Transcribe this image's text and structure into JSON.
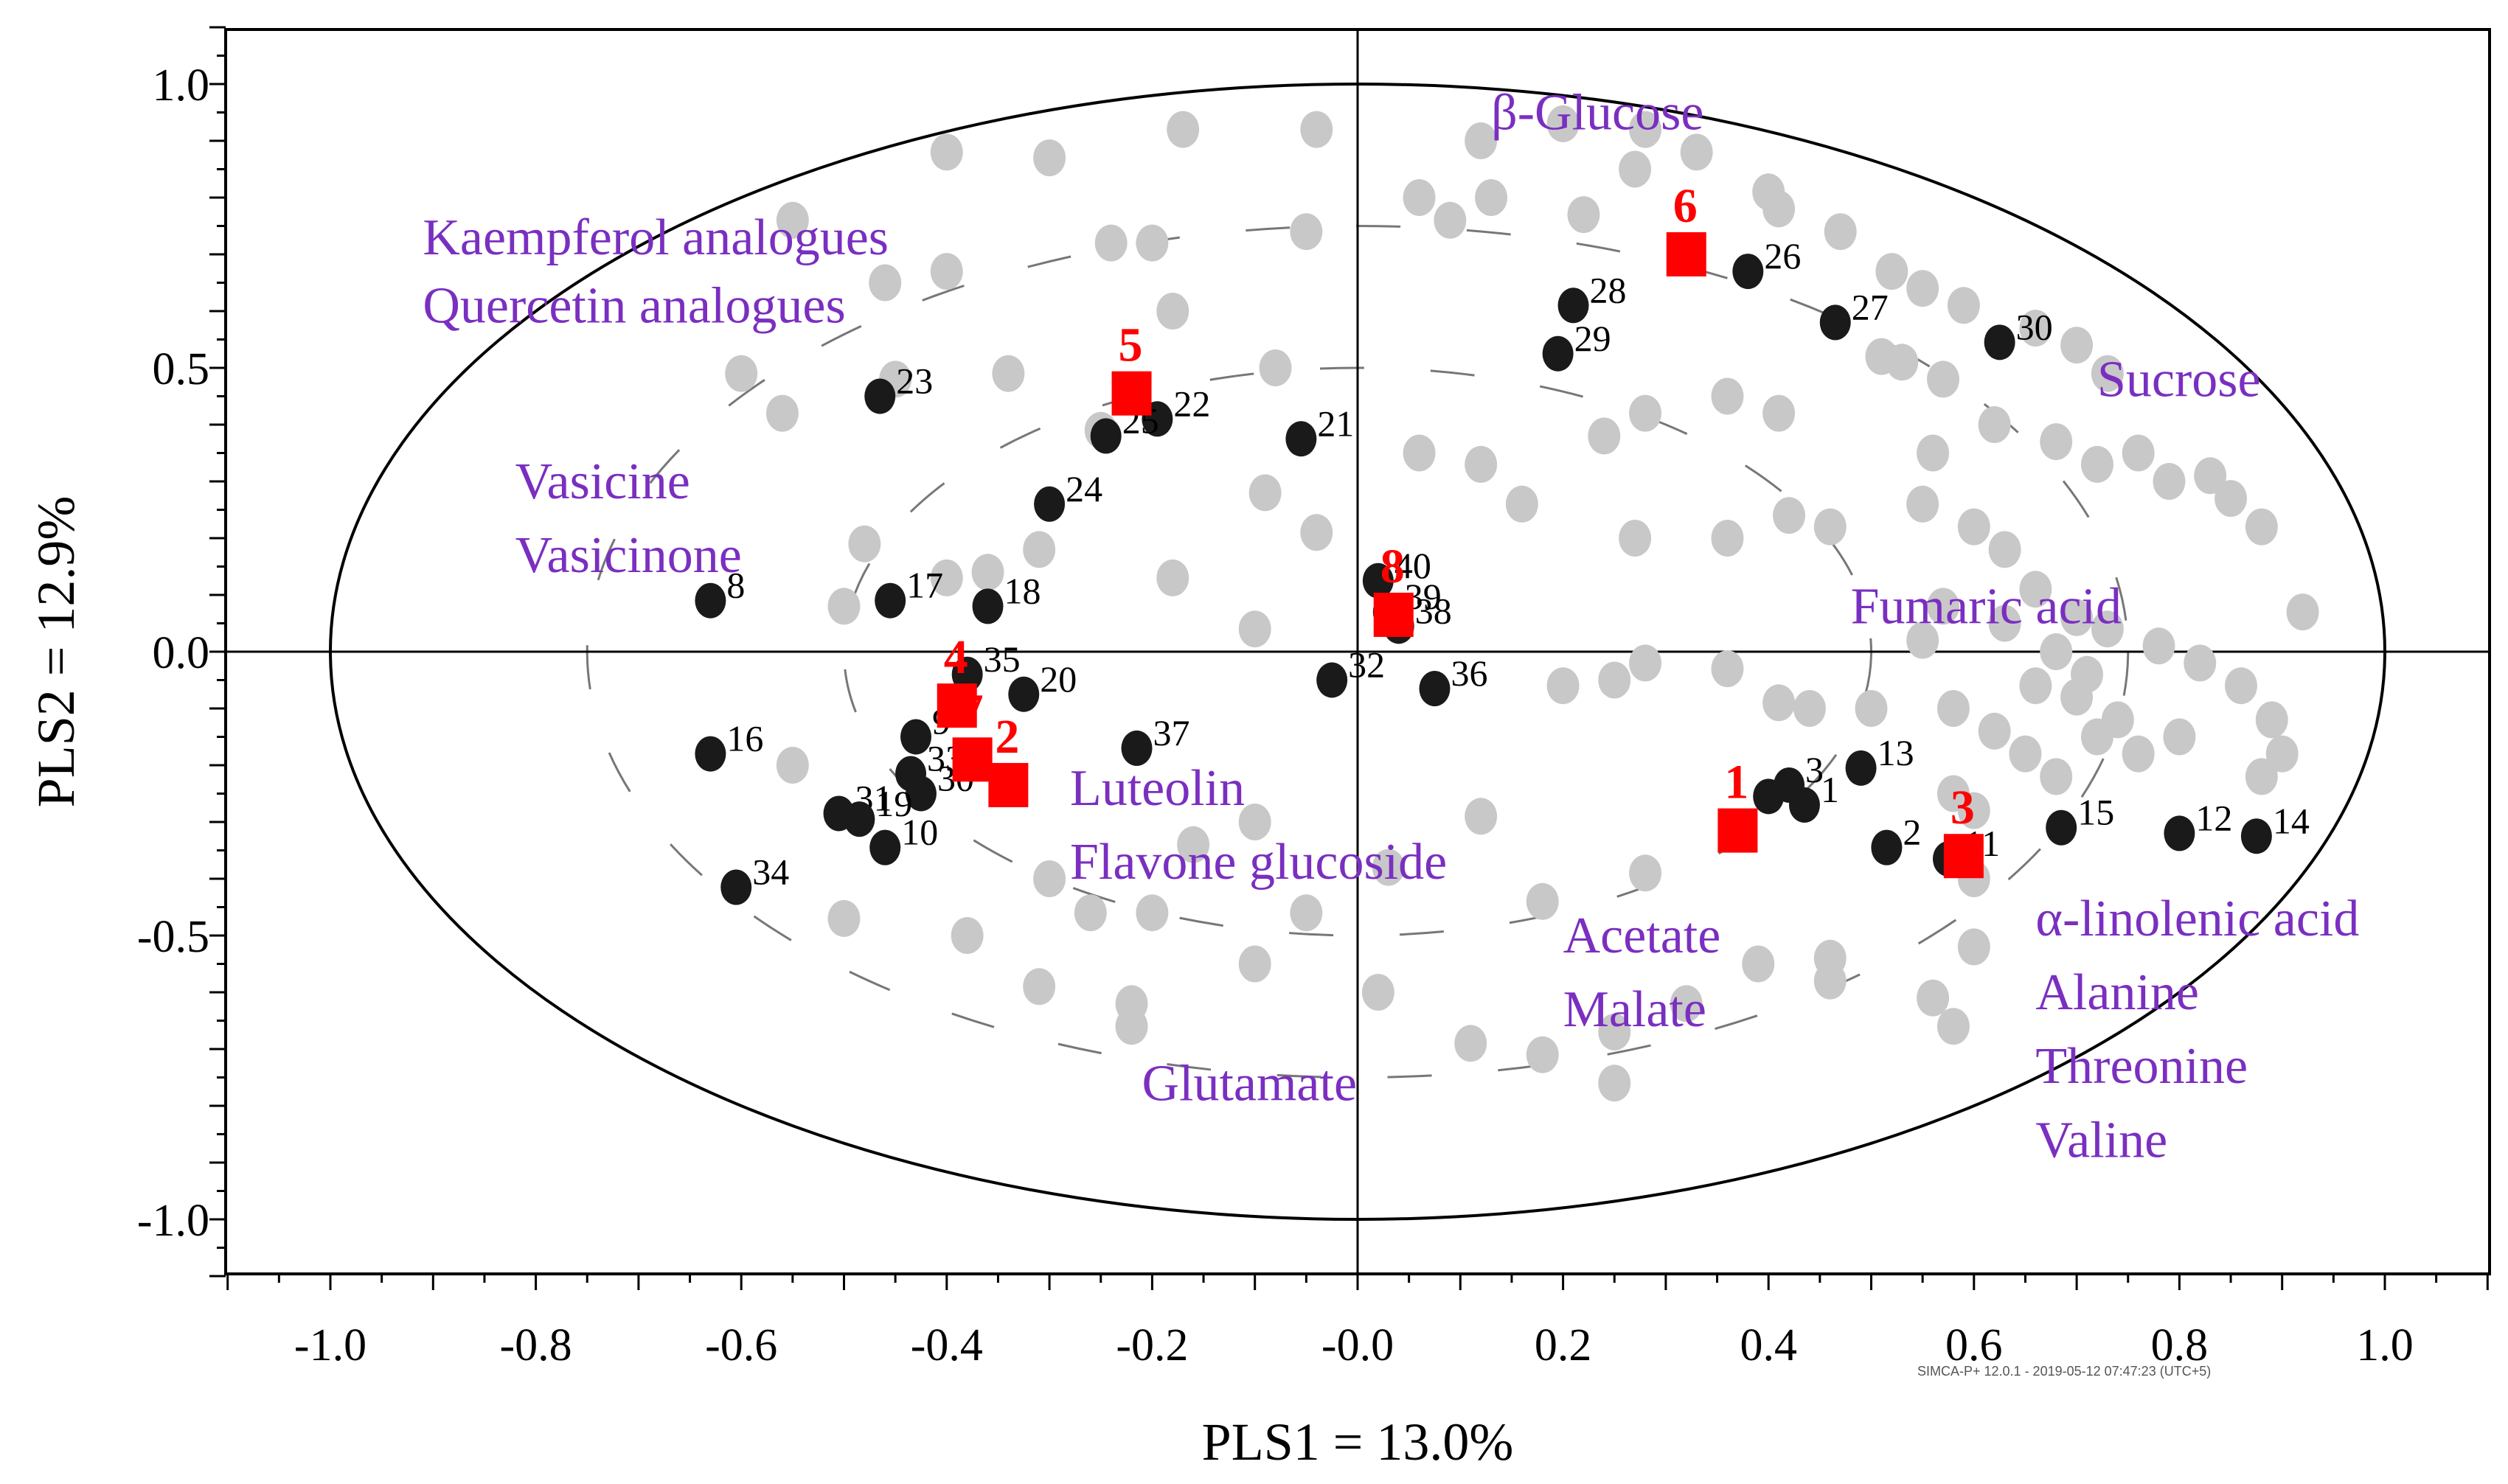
{
  "chart_data": {
    "type": "scatter",
    "xlabel": "PLS1 = 13.0%",
    "ylabel": "PLS2 = 12.9%",
    "xlim": [
      -1.1,
      1.1
    ],
    "ylim": [
      -1.1,
      1.1
    ],
    "xticks": [
      "-1.0",
      "-0.8",
      "-0.6",
      "-0.4",
      "-0.2",
      "-0.0",
      "0.2",
      "0.4",
      "0.6",
      "0.8",
      "1.0"
    ],
    "yticks": [
      "1.0",
      "0.5",
      "0.0",
      "-0.5",
      "-1.0"
    ],
    "ellipse_radii": [
      1.0,
      0.75,
      0.5
    ],
    "variables_color": "#c8c8c8",
    "observations_color": "#1a1a1a",
    "samples_color": "#ff0000",
    "label_color": "#7a2fc0",
    "metabolite_labels": [
      {
        "text": "β-Glucose",
        "x": 0.13,
        "y": 0.92
      },
      {
        "text": "Kaempferol analogues",
        "x": -0.91,
        "y": 0.7
      },
      {
        "text": "Quercetin analogues",
        "x": -0.91,
        "y": 0.58
      },
      {
        "text": "Sucrose",
        "x": 0.72,
        "y": 0.45
      },
      {
        "text": "Vasicine",
        "x": -0.82,
        "y": 0.27
      },
      {
        "text": "Vasicinone",
        "x": -0.82,
        "y": 0.14
      },
      {
        "text": "Fumaric acid",
        "x": 0.48,
        "y": 0.05
      },
      {
        "text": "Luteolin",
        "x": -0.28,
        "y": -0.27
      },
      {
        "text": "Flavone glucoside",
        "x": -0.28,
        "y": -0.4
      },
      {
        "text": "Acetate",
        "x": 0.2,
        "y": -0.53
      },
      {
        "text": "Malate",
        "x": 0.2,
        "y": -0.66
      },
      {
        "text": "Glutamate",
        "x": -0.21,
        "y": -0.79
      },
      {
        "text": "α-linolenic acid",
        "x": 0.66,
        "y": -0.5
      },
      {
        "text": "Alanine",
        "x": 0.66,
        "y": -0.63
      },
      {
        "text": "Threonine",
        "x": 0.66,
        "y": -0.76
      },
      {
        "text": "Valine",
        "x": 0.66,
        "y": -0.89
      }
    ],
    "observations": [
      {
        "label": "23",
        "x": -0.465,
        "y": 0.45
      },
      {
        "label": "22",
        "x": -0.195,
        "y": 0.41
      },
      {
        "label": "25",
        "x": -0.245,
        "y": 0.38
      },
      {
        "label": "21",
        "x": -0.055,
        "y": 0.375
      },
      {
        "label": "24",
        "x": -0.3,
        "y": 0.26
      },
      {
        "label": "8",
        "x": -0.63,
        "y": 0.09
      },
      {
        "label": "17",
        "x": -0.455,
        "y": 0.09
      },
      {
        "label": "18",
        "x": -0.36,
        "y": 0.08
      },
      {
        "label": "40",
        "x": 0.02,
        "y": 0.125
      },
      {
        "label": "39",
        "x": 0.03,
        "y": 0.07
      },
      {
        "label": "38",
        "x": 0.04,
        "y": 0.045
      },
      {
        "label": "35",
        "x": -0.38,
        "y": -0.04
      },
      {
        "label": "20",
        "x": -0.325,
        "y": -0.075
      },
      {
        "label": "32",
        "x": -0.025,
        "y": -0.05
      },
      {
        "label": "36",
        "x": 0.075,
        "y": -0.065
      },
      {
        "label": "9",
        "x": -0.43,
        "y": -0.15
      },
      {
        "label": "33",
        "x": -0.435,
        "y": -0.215
      },
      {
        "label": "30",
        "x": -0.425,
        "y": -0.25
      },
      {
        "label": "37",
        "x": -0.215,
        "y": -0.17
      },
      {
        "label": "16",
        "x": -0.63,
        "y": -0.18
      },
      {
        "label": "31",
        "x": -0.505,
        "y": -0.285
      },
      {
        "label": "19",
        "x": -0.485,
        "y": -0.295
      },
      {
        "label": "10",
        "x": -0.46,
        "y": -0.345
      },
      {
        "label": "34",
        "x": -0.605,
        "y": -0.415
      },
      {
        "label": "28",
        "x": 0.21,
        "y": 0.61
      },
      {
        "label": "29",
        "x": 0.195,
        "y": 0.525
      },
      {
        "label": "26",
        "x": 0.38,
        "y": 0.67
      },
      {
        "label": "27",
        "x": 0.465,
        "y": 0.58
      },
      {
        "label": "30",
        "x": 0.625,
        "y": 0.545
      },
      {
        "label": "13",
        "x": 0.49,
        "y": -0.205
      },
      {
        "label": "3",
        "x": 0.42,
        "y": -0.235
      },
      {
        "label": "1",
        "x": 0.435,
        "y": -0.27
      },
      {
        "label": "",
        "x": 0.4,
        "y": -0.255
      },
      {
        "label": "2",
        "x": 0.515,
        "y": -0.345
      },
      {
        "label": "11",
        "x": 0.575,
        "y": -0.365
      },
      {
        "label": "15",
        "x": 0.685,
        "y": -0.31
      },
      {
        "label": "12",
        "x": 0.8,
        "y": -0.32
      },
      {
        "label": "14",
        "x": 0.875,
        "y": -0.325
      }
    ],
    "samples": [
      {
        "label": "1",
        "x": 0.37,
        "y": -0.315
      },
      {
        "label": "2",
        "x": -0.34,
        "y": -0.235
      },
      {
        "label": "3",
        "x": 0.59,
        "y": -0.36
      },
      {
        "label": "4",
        "x": -0.39,
        "y": -0.095
      },
      {
        "label": "5",
        "x": -0.22,
        "y": 0.455
      },
      {
        "label": "6",
        "x": 0.32,
        "y": 0.7
      },
      {
        "label": "7",
        "x": -0.375,
        "y": -0.19
      },
      {
        "label": "8",
        "x": 0.035,
        "y": 0.065
      }
    ],
    "variables": [
      [
        -0.55,
        0.76
      ],
      [
        -0.4,
        0.88
      ],
      [
        -0.3,
        0.87
      ],
      [
        -0.17,
        0.92
      ],
      [
        -0.04,
        0.92
      ],
      [
        0.12,
        0.9
      ],
      [
        0.2,
        0.93
      ],
      [
        0.28,
        0.92
      ],
      [
        0.33,
        0.88
      ],
      [
        -0.46,
        0.65
      ],
      [
        -0.4,
        0.67
      ],
      [
        -0.24,
        0.72
      ],
      [
        -0.2,
        0.72
      ],
      [
        -0.05,
        0.74
      ],
      [
        0.06,
        0.8
      ],
      [
        0.09,
        0.76
      ],
      [
        0.13,
        0.8
      ],
      [
        0.22,
        0.77
      ],
      [
        0.27,
        0.85
      ],
      [
        0.4,
        0.81
      ],
      [
        0.41,
        0.78
      ],
      [
        0.47,
        0.74
      ],
      [
        -0.6,
        0.49
      ],
      [
        -0.56,
        0.42
      ],
      [
        -0.45,
        0.48
      ],
      [
        -0.34,
        0.49
      ],
      [
        -0.25,
        0.39
      ],
      [
        -0.18,
        0.6
      ],
      [
        -0.08,
        0.5
      ],
      [
        0.06,
        0.35
      ],
      [
        0.12,
        0.33
      ],
      [
        0.24,
        0.38
      ],
      [
        0.28,
        0.42
      ],
      [
        0.36,
        0.45
      ],
      [
        0.41,
        0.42
      ],
      [
        -0.48,
        0.19
      ],
      [
        -0.4,
        0.13
      ],
      [
        -0.31,
        0.18
      ],
      [
        -0.09,
        0.28
      ],
      [
        -0.04,
        0.21
      ],
      [
        0.16,
        0.26
      ],
      [
        0.27,
        0.2
      ],
      [
        0.36,
        0.2
      ],
      [
        0.42,
        0.24
      ],
      [
        0.46,
        0.22
      ],
      [
        -0.5,
        0.08
      ],
      [
        -0.36,
        0.14
      ],
      [
        -0.18,
        0.13
      ],
      [
        -0.1,
        0.04
      ],
      [
        0.2,
        -0.06
      ],
      [
        0.25,
        -0.05
      ],
      [
        0.28,
        -0.02
      ],
      [
        0.36,
        -0.03
      ],
      [
        0.41,
        -0.09
      ],
      [
        0.44,
        -0.1
      ],
      [
        0.5,
        -0.1
      ],
      [
        0.55,
        0.02
      ],
      [
        0.57,
        0.08
      ],
      [
        -0.55,
        -0.2
      ],
      [
        -0.5,
        -0.47
      ],
      [
        -0.38,
        -0.5
      ],
      [
        -0.3,
        -0.4
      ],
      [
        -0.26,
        -0.46
      ],
      [
        -0.2,
        -0.46
      ],
      [
        -0.16,
        -0.34
      ],
      [
        -0.1,
        -0.3
      ],
      [
        -0.05,
        -0.46
      ],
      [
        0.03,
        -0.38
      ],
      [
        0.12,
        -0.29
      ],
      [
        0.18,
        -0.44
      ],
      [
        0.28,
        -0.39
      ],
      [
        -0.31,
        -0.59
      ],
      [
        -0.22,
        -0.62
      ],
      [
        -0.22,
        -0.66
      ],
      [
        -0.1,
        -0.55
      ],
      [
        0.02,
        -0.6
      ],
      [
        0.11,
        -0.69
      ],
      [
        0.18,
        -0.71
      ],
      [
        0.25,
        -0.67
      ],
      [
        0.25,
        -0.76
      ],
      [
        0.32,
        -0.62
      ],
      [
        0.39,
        -0.55
      ],
      [
        0.46,
        -0.54
      ],
      [
        0.46,
        -0.58
      ],
      [
        0.51,
        0.52
      ],
      [
        0.53,
        0.51
      ],
      [
        0.57,
        0.48
      ],
      [
        0.62,
        0.4
      ],
      [
        0.68,
        0.37
      ],
      [
        0.72,
        0.33
      ],
      [
        0.76,
        0.35
      ],
      [
        0.79,
        0.3
      ],
      [
        0.83,
        0.31
      ],
      [
        0.85,
        0.27
      ],
      [
        0.88,
        0.22
      ],
      [
        0.92,
        0.07
      ],
      [
        0.55,
        0.26
      ],
      [
        0.6,
        0.22
      ],
      [
        0.63,
        0.18
      ],
      [
        0.66,
        0.11
      ],
      [
        0.7,
        0.06
      ],
      [
        0.73,
        0.04
      ],
      [
        0.78,
        0.01
      ],
      [
        0.82,
        -0.02
      ],
      [
        0.86,
        -0.06
      ],
      [
        0.89,
        -0.12
      ],
      [
        0.9,
        -0.18
      ],
      [
        0.88,
        -0.22
      ],
      [
        0.58,
        -0.1
      ],
      [
        0.62,
        -0.14
      ],
      [
        0.65,
        -0.18
      ],
      [
        0.68,
        -0.22
      ],
      [
        0.7,
        -0.08
      ],
      [
        0.74,
        -0.12
      ],
      [
        0.76,
        -0.18
      ],
      [
        0.8,
        -0.15
      ],
      [
        0.6,
        -0.28
      ],
      [
        0.6,
        -0.4
      ],
      [
        0.6,
        -0.52
      ],
      [
        0.56,
        -0.61
      ],
      [
        0.58,
        -0.66
      ],
      [
        0.52,
        0.67
      ],
      [
        0.55,
        0.64
      ],
      [
        0.59,
        0.61
      ],
      [
        0.66,
        0.57
      ],
      [
        0.7,
        0.54
      ],
      [
        0.73,
        0.49
      ],
      [
        0.63,
        0.05
      ],
      [
        0.68,
        0.0
      ],
      [
        0.71,
        -0.04
      ],
      [
        0.66,
        -0.06
      ],
      [
        0.72,
        -0.15
      ],
      [
        0.56,
        0.35
      ],
      [
        0.58,
        -0.25
      ]
    ],
    "watermark": "SIMCA-P+ 12.0.1 - 2019-05-12 07:47:23 (UTC+5)"
  }
}
